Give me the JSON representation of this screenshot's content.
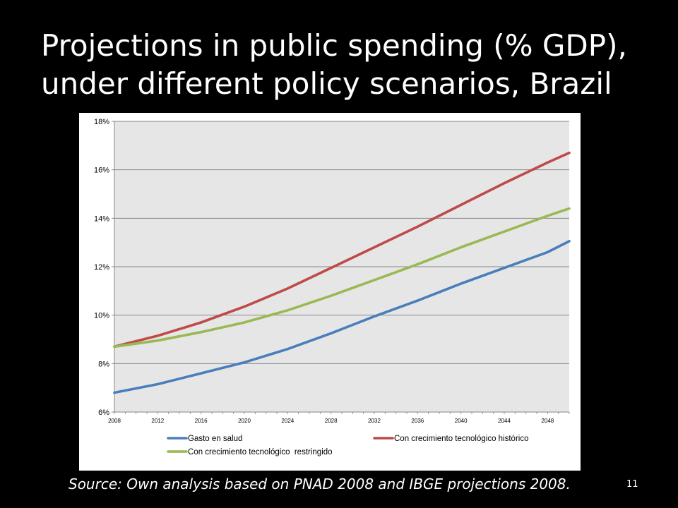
{
  "slide": {
    "title_line1": "Projections in public spending (% GDP),",
    "title_line2": "under different policy scenarios, Brazil",
    "source": "Source: Own analysis based on PNAD 2008 and IBGE projections 2008.",
    "page_number": "11"
  },
  "chart_data": {
    "type": "line",
    "title": "",
    "xlabel": "",
    "ylabel": "",
    "ylim": [
      6,
      18
    ],
    "y_ticks": [
      6,
      8,
      10,
      12,
      14,
      16,
      18
    ],
    "y_tick_labels": [
      "6%",
      "8%",
      "10%",
      "12%",
      "14%",
      "16%",
      "18%"
    ],
    "x_range": [
      2008,
      2050
    ],
    "x_ticks": [
      2008,
      2012,
      2016,
      2020,
      2024,
      2028,
      2032,
      2036,
      2040,
      2044,
      2048
    ],
    "grid": true,
    "legend_position": "bottom",
    "x": [
      2008,
      2012,
      2016,
      2020,
      2024,
      2028,
      2032,
      2036,
      2040,
      2044,
      2048,
      2050
    ],
    "series": [
      {
        "name": "Gasto en salud",
        "color": "#4a7ebb",
        "values": [
          6.8,
          7.15,
          7.6,
          8.05,
          8.6,
          9.25,
          9.95,
          10.6,
          11.3,
          11.95,
          12.6,
          13.05
        ]
      },
      {
        "name": "Con crecimiento tecnológico histórico",
        "color": "#be4b48",
        "values": [
          8.7,
          9.15,
          9.7,
          10.35,
          11.1,
          11.95,
          12.8,
          13.65,
          14.55,
          15.45,
          16.3,
          16.7
        ]
      },
      {
        "name": "Con crecimiento tecnológico  restringido",
        "color": "#98b954",
        "values": [
          8.7,
          8.95,
          9.3,
          9.7,
          10.2,
          10.8,
          11.45,
          12.1,
          12.8,
          13.45,
          14.1,
          14.4
        ]
      }
    ]
  }
}
